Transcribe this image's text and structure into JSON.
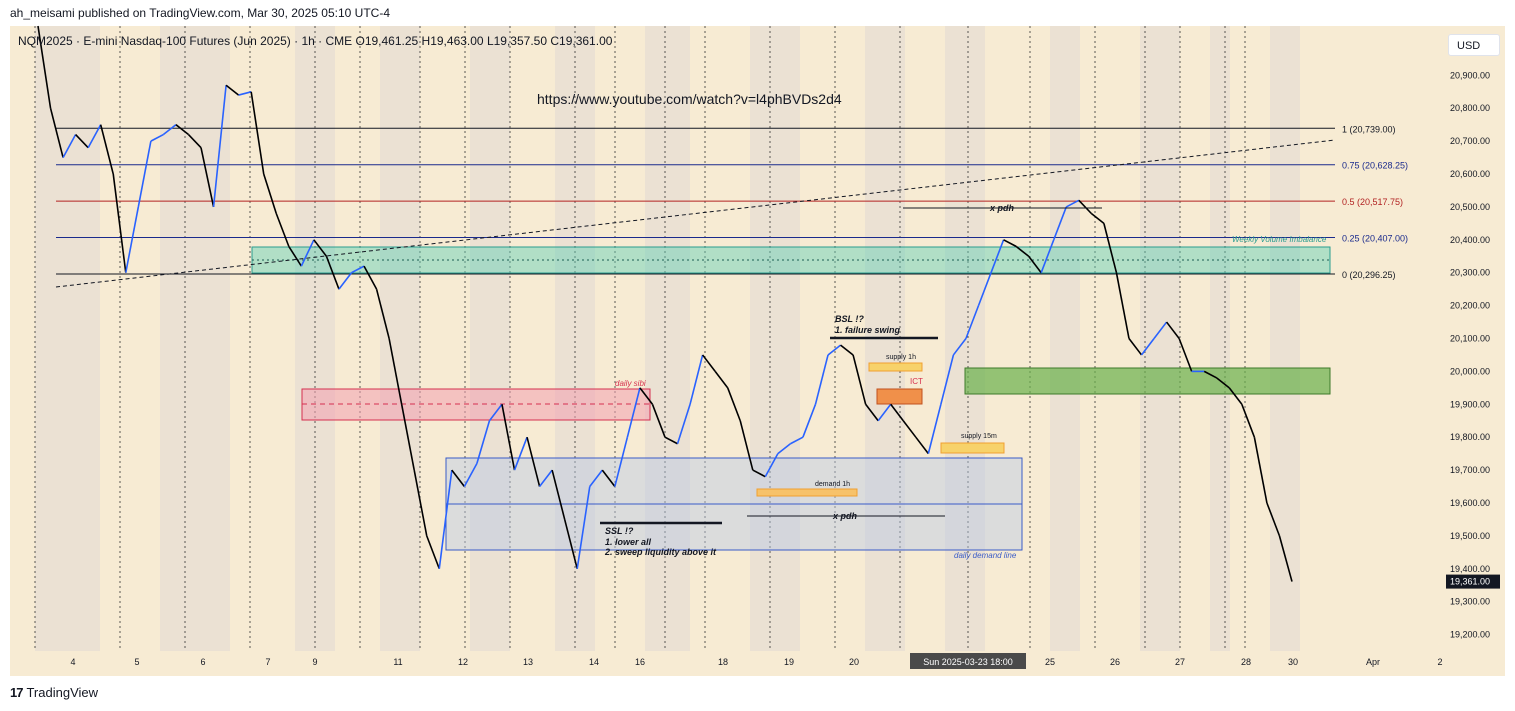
{
  "header": {
    "published": "ah_meisami published on TradingView.com, Mar 30, 2025 05:10 UTC-4"
  },
  "symbol": {
    "info": "NQM2025 · E-mini Nasdaq-100 Futures (Jun 2025) · 1h · CME",
    "open": "O19,461.25",
    "high": "H19,463.00",
    "low": "L19,357.50",
    "close": "C19,361.00"
  },
  "currency": "USD",
  "annotation_url": "https://www.youtube.com/watch?v=l4phBVDs2d4",
  "brand": {
    "name": "TradingView",
    "logo": "17"
  },
  "colors": {
    "bg": "#f7ebd3",
    "shade": "#ebe1d3",
    "up": "#2962ff",
    "down": "#000000",
    "fib": "#1a2a8c",
    "half": "#b22222",
    "zone_teal": "#5bd1b5",
    "zone_green": "#6ab04c",
    "zone_pink": "#f2a0b0",
    "zone_blue": "#b9c9e6",
    "zone_orange": "#f0a030"
  },
  "chart_data": {
    "type": "line",
    "title": "",
    "xlabel": "",
    "ylabel": "",
    "ylim": [
      19150,
      21050
    ],
    "y_ticks": [
      "20,900.00",
      "20,800.00",
      "20,700.00",
      "20,600.00",
      "20,500.00",
      "20,400.00",
      "20,300.00",
      "20,200.00",
      "20,100.00",
      "20,000.00",
      "19,900.00",
      "19,800.00",
      "19,700.00",
      "19,600.00",
      "19,500.00",
      "19,400.00",
      "19,300.00",
      "19,200.00"
    ],
    "x_labels": [
      "4",
      "5",
      "6",
      "7",
      "9",
      "11",
      "12",
      "13",
      "14",
      "16",
      "18",
      "19",
      "20",
      "Sun 2025-03-23   18:00",
      "25",
      "26",
      "27",
      "28",
      "30",
      "Apr",
      "2"
    ],
    "last_price": "19,361.00",
    "series": [
      {
        "values": [
          21050,
          20800,
          20650,
          20720,
          20680,
          20750,
          20600,
          20300,
          20500,
          20700,
          20720,
          20750,
          20720,
          20680,
          20500,
          20870,
          20840,
          20850,
          20600,
          20480,
          20380,
          20320,
          20400,
          20350,
          20250,
          20300,
          20320,
          20250,
          20100,
          19900,
          19700,
          19500,
          19400,
          19700,
          19650,
          19720,
          19850,
          19900,
          19700,
          19800,
          19650,
          19700,
          19550,
          19400,
          19650,
          19700,
          19650,
          19800,
          19950,
          19900,
          19800,
          19780,
          19900,
          20050,
          20000,
          19950,
          19850,
          19700,
          19680,
          19750,
          19780,
          19800,
          19900,
          20050,
          20080,
          20050,
          19900,
          19850,
          19900,
          19850,
          19800,
          19750,
          19900,
          20050,
          20100,
          20200,
          20300,
          20400,
          20380,
          20350,
          20300,
          20400,
          20500,
          20520,
          20480,
          20450,
          20300,
          20100,
          20050,
          20100,
          20150,
          20100,
          20000,
          20000,
          19980,
          19950,
          19900,
          19800,
          19600,
          19500,
          19361
        ]
      }
    ],
    "levels": [
      {
        "label": "1 (20,739.00)",
        "value": 20739
      },
      {
        "label": "0.75 (20,628.25)",
        "value": 20628.25
      },
      {
        "label": "0.5 (20,517.75)",
        "value": 20517.75
      },
      {
        "label": "0.25 (20,407.00)",
        "value": 20407
      },
      {
        "label": "0 (20,296.25)",
        "value": 20296.25
      }
    ],
    "annotations": [
      {
        "text": "Weekly Volume Imbalance"
      },
      {
        "text": "daily sibi"
      },
      {
        "text": "supply 1h"
      },
      {
        "text": "ICT"
      },
      {
        "text": "supply 15m"
      },
      {
        "text": "demand 1h"
      },
      {
        "text": "x pdh"
      },
      {
        "text": "x pdh"
      },
      {
        "text": "BSL !?"
      },
      {
        "text": "1. failure swing"
      },
      {
        "text": "SSL !?"
      },
      {
        "text": "1. lower all"
      },
      {
        "text": "2. sweep liquidity above it"
      },
      {
        "text": "daily demand line"
      }
    ]
  }
}
